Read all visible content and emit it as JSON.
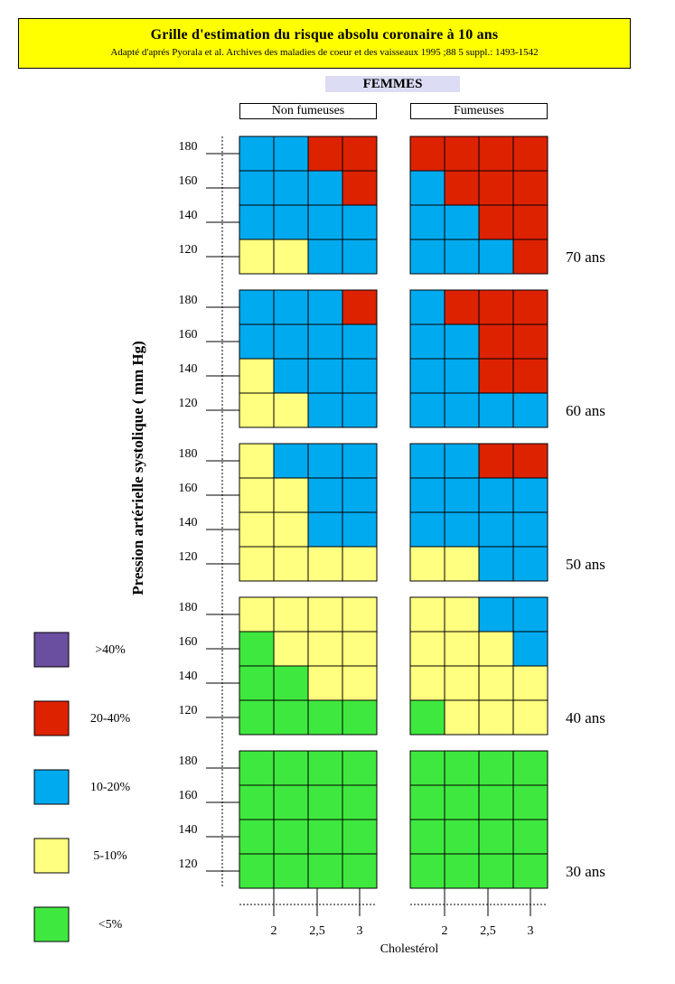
{
  "header": {
    "title": "Grille d'estimation du risque absolu coronaire à 10 ans",
    "subtitle": "Adapté d'aprés Pyorala et al. Archives des maladies de coeur et des vaisseaux 1995 ;88 5 suppl.: 1493-1542"
  },
  "section_label": "FEMMES",
  "columns": {
    "non_smokers": "Non fumeuses",
    "smokers": "Fumeuses"
  },
  "chart_data": {
    "type": "heatmap",
    "title": "Grille d'estimation du risque absolu coronaire à 10 ans",
    "ylabel": "Pression artérielle systolique ( mm Hg)",
    "xlabel": "Cholestérol",
    "y_ticks": [
      "180",
      "160",
      "140",
      "120"
    ],
    "x_ticks": [
      "2",
      "2,5",
      "3"
    ],
    "legend": [
      {
        "code": "P",
        "label": ">40%",
        "color": "#6a4ea0"
      },
      {
        "code": "R",
        "label": "20-40%",
        "color": "#dd2200"
      },
      {
        "code": "B",
        "label": "10-20%",
        "color": "#00aaee"
      },
      {
        "code": "Y",
        "label": "5-10%",
        "color": "#ffff80"
      },
      {
        "code": "G",
        "label": "<5%",
        "color": "#3fe83f"
      }
    ],
    "panels": [
      {
        "age": "70 ans",
        "non_smokers": [
          "BBRR",
          "BBBR",
          "BBBB",
          "YYBB"
        ],
        "smokers": [
          "RRRR",
          "BRRR",
          "BBRR",
          "BBBR"
        ]
      },
      {
        "age": "60 ans",
        "non_smokers": [
          "BBBR",
          "BBBB",
          "YBBB",
          "YYBB"
        ],
        "smokers": [
          "BRRR",
          "BBRR",
          "BBRR",
          "BBBB"
        ]
      },
      {
        "age": "50 ans",
        "non_smokers": [
          "YBBB",
          "YYBB",
          "YYBB",
          "YYYY"
        ],
        "smokers": [
          "BBRR",
          "BBBB",
          "BBBB",
          "YYBB"
        ]
      },
      {
        "age": "40 ans",
        "non_smokers": [
          "YYYY",
          "GYYY",
          "GGYY",
          "GGGG"
        ],
        "smokers": [
          "YYBB",
          "YYYB",
          "YYYY",
          "GYYY"
        ]
      },
      {
        "age": "30 ans",
        "non_smokers": [
          "GGGG",
          "GGGG",
          "GGGG",
          "GGGG"
        ],
        "smokers": [
          "GGGG",
          "GGGG",
          "GGGG",
          "GGGG"
        ]
      }
    ]
  }
}
